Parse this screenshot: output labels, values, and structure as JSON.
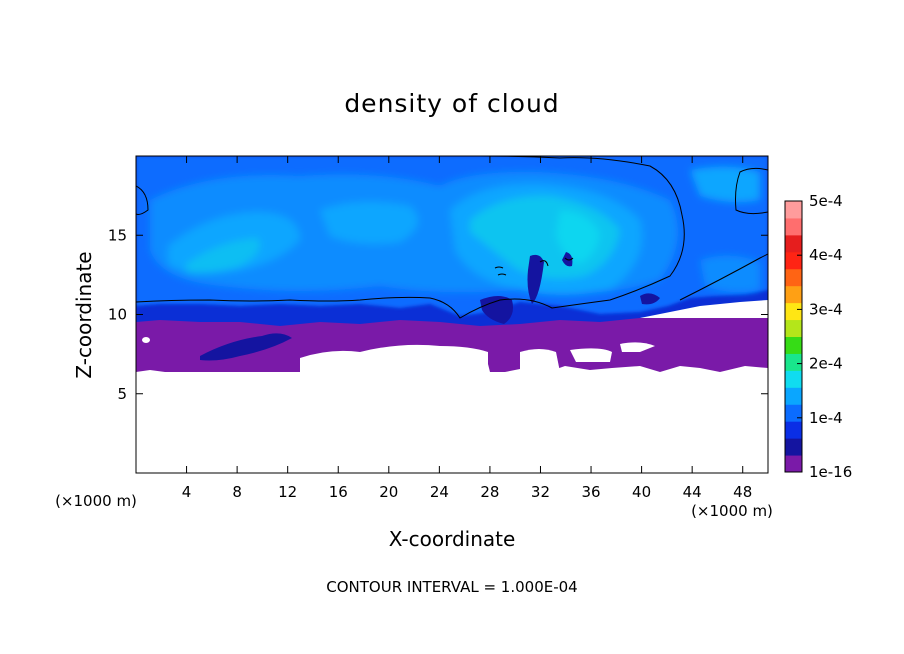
{
  "chart_data": {
    "type": "heatmap",
    "title": "density of cloud",
    "xlabel": "X-coordinate",
    "ylabel": "Z-coordinate",
    "x_unit_left": "(×1000 m)",
    "x_unit_right": "(×1000 m)",
    "xlim": [
      0,
      50
    ],
    "ylim": [
      0,
      20
    ],
    "x_ticks": [
      4,
      8,
      12,
      16,
      20,
      24,
      28,
      32,
      36,
      40,
      44,
      48
    ],
    "y_ticks": [
      5,
      10,
      15
    ],
    "footer": "CONTOUR INTERVAL = 1.000E-04",
    "colorbar": {
      "range": [
        1e-16,
        0.0005
      ],
      "tick_labels": [
        "1e-16",
        "1e-4",
        "2e-4",
        "3e-4",
        "4e-4",
        "5e-4"
      ],
      "colors": [
        "#7a1aa8",
        "#1414a0",
        "#0a2ee6",
        "#0b6cff",
        "#0aa6ff",
        "#10dcf0",
        "#19e68c",
        "#36dc16",
        "#b4e61a",
        "#ffe614",
        "#ffa014",
        "#ff6414",
        "#ff2414",
        "#e61e1e",
        "#ff6e6e",
        "#ff9c9c"
      ]
    },
    "field_description": {
      "cloud_base_km_min": 6.5,
      "cloud_top_km_max": 20,
      "cloud_base_layer_value": "1e-16",
      "upper_cloud_value_range": [
        "1e-4",
        "1.4e-4"
      ],
      "contour_level": "1e-4"
    }
  }
}
